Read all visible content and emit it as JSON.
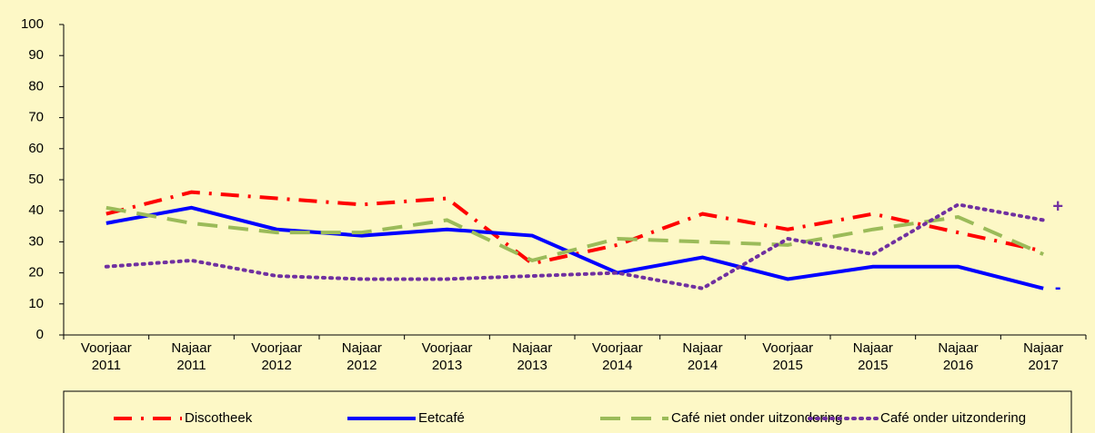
{
  "chart_data": {
    "type": "line",
    "categories": [
      "Voorjaar 2011",
      "Najaar 2011",
      "Voorjaar 2012",
      "Najaar 2012",
      "Voorjaar 2013",
      "Najaar 2013",
      "Voorjaar 2014",
      "Najaar 2014",
      "Voorjaar 2015",
      "Najaar 2015",
      "Najaar 2016",
      "Najaar 2017"
    ],
    "series": [
      {
        "name": "Discotheek",
        "color": "#ff0000",
        "dash": "dashdot",
        "values": [
          39,
          46,
          44,
          42,
          44,
          23,
          29,
          39,
          34,
          39,
          33,
          27
        ]
      },
      {
        "name": "Eetcafé",
        "color": "#0000ff",
        "dash": "solid",
        "values": [
          36,
          41,
          34,
          32,
          34,
          32,
          20,
          25,
          18,
          22,
          22,
          15
        ]
      },
      {
        "name": "Café niet onder uitzondering",
        "color": "#9bbb59",
        "dash": "dashed",
        "values": [
          41,
          36,
          33,
          33,
          37,
          24,
          31,
          30,
          29,
          34,
          38,
          26
        ]
      },
      {
        "name": "Café onder uitzondering",
        "color": "#7030a0",
        "dash": "dotted",
        "values": [
          22,
          24,
          19,
          18,
          18,
          19,
          20,
          15,
          31,
          26,
          42,
          37
        ]
      }
    ],
    "annotations": [
      {
        "text": "+",
        "series": 3
      },
      {
        "text": "-",
        "series": 1
      }
    ],
    "ylim": [
      0,
      100
    ],
    "yticks": [
      0,
      10,
      20,
      30,
      40,
      50,
      60,
      70,
      80,
      90,
      100
    ],
    "grid": false
  }
}
